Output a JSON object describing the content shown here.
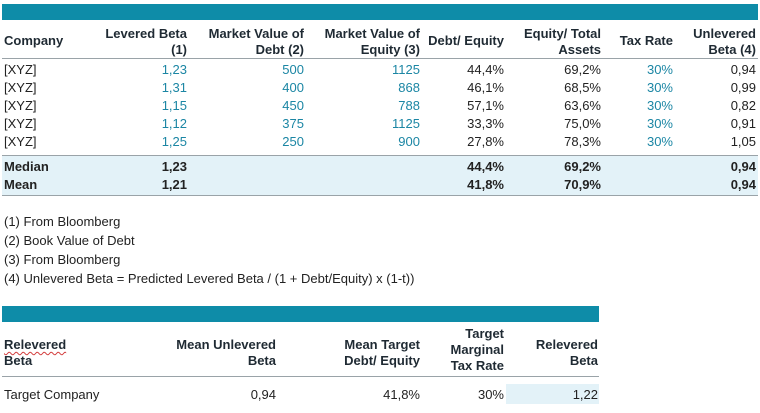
{
  "table1": {
    "headers": [
      {
        "line1": "Company",
        "line2": ""
      },
      {
        "line1": "Levered Beta",
        "line2": "(1)"
      },
      {
        "line1": "Market Value of",
        "line2": "Debt (2)"
      },
      {
        "line1": "Market Value of",
        "line2": "Equity (3)"
      },
      {
        "line1": "Debt/ Equity",
        "line2": ""
      },
      {
        "line1": "Equity/ Total",
        "line2": "Assets"
      },
      {
        "line1": "Tax Rate",
        "line2": ""
      },
      {
        "line1": "Unlevered",
        "line2": "Beta (4)"
      }
    ],
    "rows": [
      [
        "[XYZ]",
        "1,23",
        "500",
        "1125",
        "44,4%",
        "69,2%",
        "30%",
        "0,94"
      ],
      [
        "[XYZ]",
        "1,31",
        "400",
        "868",
        "46,1%",
        "68,5%",
        "30%",
        "0,99"
      ],
      [
        "[XYZ]",
        "1,15",
        "450",
        "788",
        "57,1%",
        "63,6%",
        "30%",
        "0,82"
      ],
      [
        "[XYZ]",
        "1,12",
        "375",
        "1125",
        "33,3%",
        "75,0%",
        "30%",
        "0,91"
      ],
      [
        "[XYZ]",
        "1,25",
        "250",
        "900",
        "27,8%",
        "78,3%",
        "30%",
        "1,05"
      ]
    ],
    "summary": [
      [
        "Median",
        "1,23",
        "",
        "",
        "44,4%",
        "69,2%",
        "",
        "0,94"
      ],
      [
        "Mean",
        "1,21",
        "",
        "",
        "41,8%",
        "70,9%",
        "",
        "0,94"
      ]
    ]
  },
  "notes": [
    "(1) From Bloomberg",
    "(2) Book Value of Debt",
    "(3) From Bloomberg",
    "(4) Unlevered Beta = Predicted Levered Beta / (1 + Debt/Equity) x (1-t))"
  ],
  "table2": {
    "headers": [
      {
        "lines": [
          "Relevered",
          "Beta"
        ]
      },
      {
        "lines": [
          "Mean Unlevered",
          "Beta"
        ]
      },
      {
        "lines": [
          "Mean Target",
          "Debt/ Equity"
        ]
      },
      {
        "lines": [
          "Target",
          "Marginal",
          "Tax Rate"
        ]
      },
      {
        "lines": [
          "Relevered",
          "Beta"
        ]
      }
    ],
    "row": [
      "Target Company",
      "0,94",
      "41,8%",
      "30%",
      "1,22"
    ]
  },
  "colors": {
    "accent_bar": "#0e8ca8",
    "blue_text": "#1b86a4",
    "highlight": "#e3f2f8"
  }
}
